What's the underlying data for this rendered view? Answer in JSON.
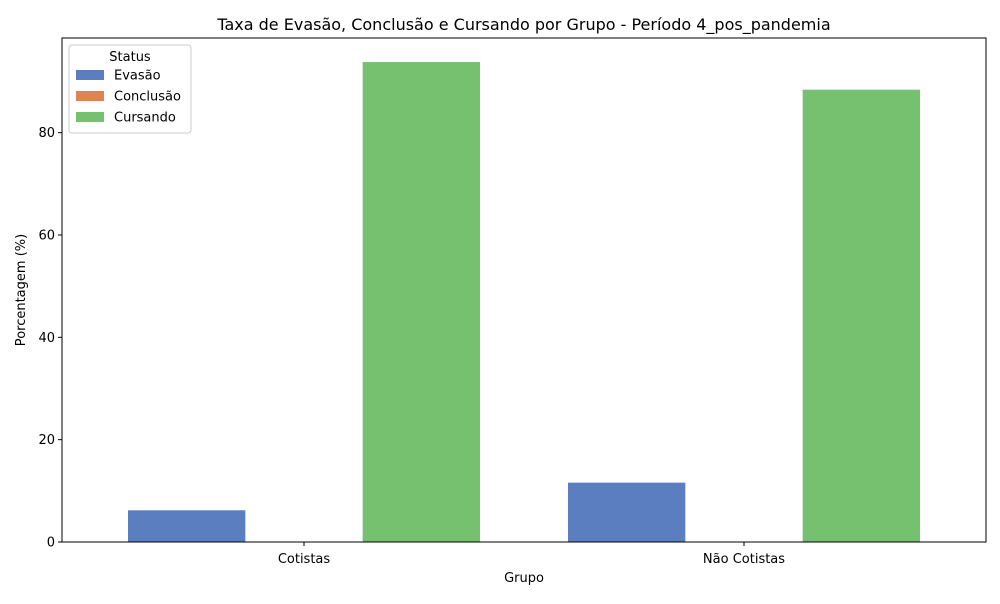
{
  "chart_data": {
    "type": "bar",
    "title": "Taxa de Evasão, Conclusão e Cursando por Grupo - Período 4_pos_pandemia",
    "xlabel": "Grupo",
    "ylabel": "Porcentagem (%)",
    "categories": [
      "Cotistas",
      "Não Cotistas"
    ],
    "series": [
      {
        "name": "Evasão",
        "color": "#5b7ec1",
        "values": [
          6.2,
          11.6
        ]
      },
      {
        "name": "Conclusão",
        "color": "#dd8452",
        "values": [
          0,
          0
        ]
      },
      {
        "name": "Cursando",
        "color": "#76c170",
        "values": [
          93.8,
          88.4
        ]
      }
    ],
    "ylim": [
      0,
      98.5
    ],
    "yticks": [
      0,
      20,
      40,
      60,
      80
    ],
    "grid": false,
    "legend": {
      "title": "Status",
      "position": "top-left"
    }
  }
}
